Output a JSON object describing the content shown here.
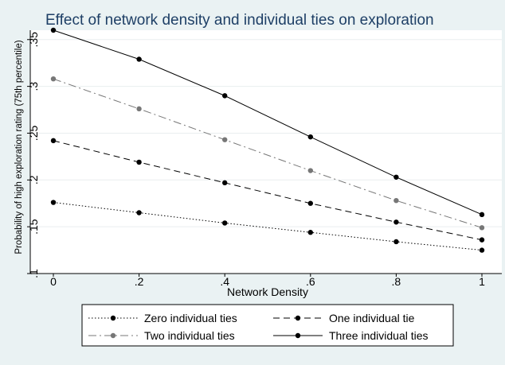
{
  "chart_data": {
    "type": "line",
    "title": "Effect of network density and individual ties on exploration",
    "xlabel": "Network Density",
    "ylabel": "Probability of high exploration rating (75th percentile)",
    "x": [
      0,
      0.2,
      0.4,
      0.6,
      0.8,
      1
    ],
    "x_tick_values": [
      0,
      0.2,
      0.4,
      0.6,
      0.8,
      1
    ],
    "x_tick_labels": [
      "0",
      ".2",
      ".4",
      ".6",
      ".8",
      "1"
    ],
    "y_tick_values": [
      0.1,
      0.15,
      0.2,
      0.25,
      0.3,
      0.35
    ],
    "y_tick_labels": [
      ".1",
      ".15",
      ".2",
      ".25",
      ".3",
      ".35"
    ],
    "xlim": [
      0,
      1
    ],
    "ylim": [
      0.1,
      0.36
    ],
    "grid": true,
    "legend_position": "bottom",
    "series": [
      {
        "name": "Zero individual ties",
        "values": [
          0.176,
          0.165,
          0.154,
          0.144,
          0.134,
          0.125
        ],
        "style": "dotted",
        "color": "#000000"
      },
      {
        "name": "One individual tie",
        "values": [
          0.242,
          0.219,
          0.197,
          0.175,
          0.155,
          0.136
        ],
        "style": "dashed",
        "color": "#000000"
      },
      {
        "name": "Two individual ties",
        "values": [
          0.308,
          0.276,
          0.243,
          0.21,
          0.178,
          0.149
        ],
        "style": "dashdot",
        "color": "#777777"
      },
      {
        "name": "Three individual ties",
        "values": [
          0.36,
          0.329,
          0.29,
          0.246,
          0.203,
          0.163
        ],
        "style": "solid",
        "color": "#000000"
      }
    ]
  }
}
